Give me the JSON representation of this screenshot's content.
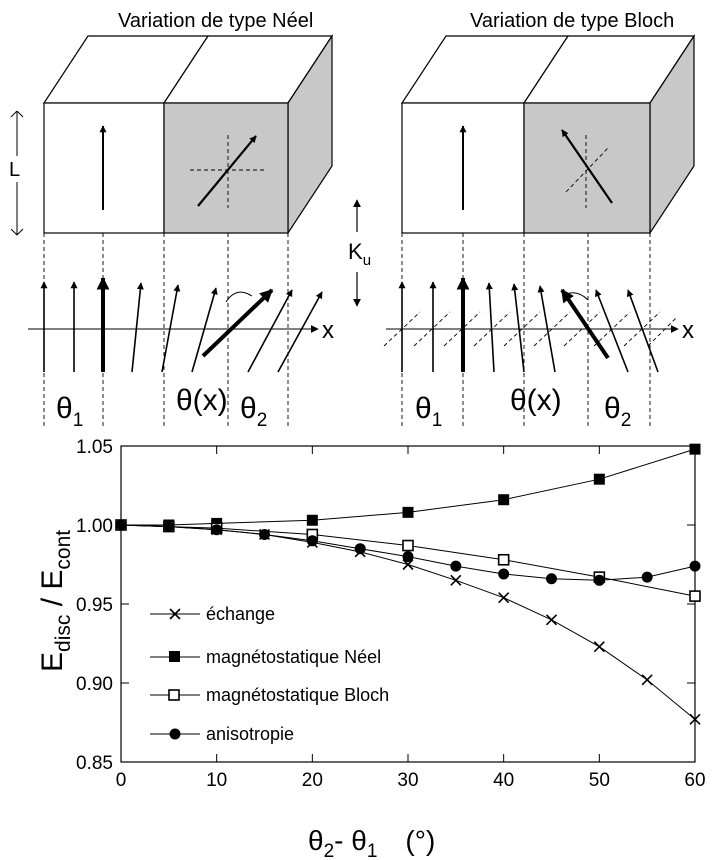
{
  "panels": {
    "neel_title": "Variation de type Néel",
    "bloch_title": "Variation de type Bloch",
    "L_label": "L",
    "Ku_main": "K",
    "Ku_sub": "u",
    "x_axis_label": "x",
    "theta": "θ",
    "sub1": "1",
    "sub2": "2",
    "theta_x": "θ(x)"
  },
  "chart_data": {
    "type": "line",
    "x": [
      0,
      5,
      10,
      15,
      20,
      25,
      30,
      35,
      40,
      45,
      50,
      55,
      60
    ],
    "xlim": [
      0,
      60
    ],
    "ylim": [
      0.85,
      1.05
    ],
    "xticks": [
      0,
      10,
      20,
      30,
      40,
      50,
      60
    ],
    "yticks": [
      "0.85",
      "0.90",
      "0.95",
      "1.00",
      "1.05"
    ],
    "xlabel": "θ2- θ1   (°)",
    "xlabel_parts": {
      "t1": "θ",
      "s1": "2",
      "mid": "- θ",
      "s2": "1",
      "unit": "(°)"
    },
    "ylabel": "Edisc / Econt",
    "ylabel_parts": {
      "e1": "E",
      "s1": "disc",
      "slash": " / E",
      "s2": "cont"
    },
    "grid": false,
    "legend_position": "lower-left",
    "series": [
      {
        "name": "échange",
        "marker": "cross",
        "x": [
          0,
          5,
          10,
          15,
          20,
          25,
          30,
          35,
          40,
          45,
          50,
          55,
          60
        ],
        "values": [
          1.0,
          0.999,
          0.997,
          0.994,
          0.989,
          0.983,
          0.975,
          0.965,
          0.954,
          0.94,
          0.923,
          0.902,
          0.877
        ]
      },
      {
        "name": "magnétostatique Néel",
        "marker": "filled-square",
        "x": [
          0,
          5,
          10,
          20,
          30,
          40,
          50,
          60
        ],
        "values": [
          1.0,
          1.0,
          1.001,
          1.003,
          1.008,
          1.016,
          1.029,
          1.048
        ]
      },
      {
        "name": "magnétostatique Bloch",
        "marker": "open-square",
        "x": [
          0,
          5,
          10,
          20,
          30,
          40,
          50,
          60
        ],
        "values": [
          1.0,
          0.999,
          0.998,
          0.994,
          0.987,
          0.978,
          0.967,
          0.955
        ]
      },
      {
        "name": "anisotropie",
        "marker": "filled-circle",
        "x": [
          0,
          5,
          10,
          15,
          20,
          25,
          30,
          35,
          40,
          45,
          50,
          55,
          60
        ],
        "values": [
          1.0,
          0.999,
          0.997,
          0.994,
          0.99,
          0.985,
          0.98,
          0.974,
          0.969,
          0.966,
          0.965,
          0.967,
          0.974
        ]
      }
    ]
  }
}
